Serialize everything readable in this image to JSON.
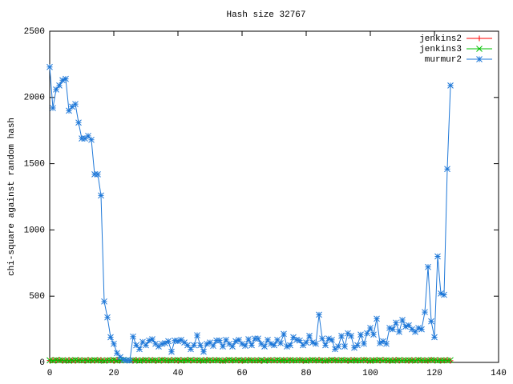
{
  "chart_data": {
    "type": "line",
    "title": "Hash size 32767",
    "y_label": "chi-square against random hash",
    "legend": "top-right",
    "x": [
      0,
      1,
      2,
      3,
      4,
      5,
      6,
      7,
      8,
      9,
      10,
      11,
      12,
      13,
      14,
      15,
      16,
      17,
      18,
      19,
      20,
      21,
      22,
      23,
      24,
      25,
      26,
      27,
      28,
      29,
      30,
      31,
      32,
      33,
      34,
      35,
      36,
      37,
      38,
      39,
      40,
      41,
      42,
      43,
      44,
      45,
      46,
      47,
      48,
      49,
      50,
      51,
      52,
      53,
      54,
      55,
      56,
      57,
      58,
      59,
      60,
      61,
      62,
      63,
      64,
      65,
      66,
      67,
      68,
      69,
      70,
      71,
      72,
      73,
      74,
      75,
      76,
      77,
      78,
      79,
      80,
      81,
      82,
      83,
      84,
      85,
      86,
      87,
      88,
      89,
      90,
      91,
      92,
      93,
      94,
      95,
      96,
      97,
      98,
      99,
      100,
      101,
      102,
      103,
      104,
      105,
      106,
      107,
      108,
      109,
      110,
      111,
      112,
      113,
      114,
      115,
      116,
      117,
      118,
      119,
      120,
      121,
      122,
      123,
      124,
      125
    ],
    "series": [
      {
        "name": "jenkins2",
        "color": "#ff0000",
        "marker": "plus",
        "values": [
          14,
          17,
          15,
          19,
          13,
          16,
          18,
          15,
          12,
          17,
          16,
          14,
          18,
          15,
          13,
          17,
          19,
          14,
          16,
          15,
          12,
          18,
          15,
          17,
          14,
          16,
          13,
          19,
          15,
          17,
          14,
          16,
          18,
          13,
          15,
          17,
          16,
          14,
          19,
          15,
          13,
          17,
          15,
          18,
          14,
          16,
          15,
          13,
          17,
          19,
          14,
          16,
          18,
          15,
          12,
          17,
          16,
          14,
          18,
          15,
          13,
          17,
          19,
          14,
          16,
          15,
          12,
          18,
          15,
          17,
          14,
          16,
          13,
          19,
          15,
          17,
          14,
          16,
          18,
          13,
          15,
          17,
          16,
          14,
          19,
          15,
          13,
          17,
          15,
          18,
          14,
          16,
          15,
          13,
          17,
          19,
          14,
          16,
          18,
          15,
          12,
          17,
          16,
          14,
          18,
          15,
          13,
          17,
          19,
          14,
          16,
          15,
          12,
          18,
          15,
          17,
          14,
          16,
          13,
          19,
          15,
          17,
          14,
          16,
          18,
          13
        ]
      },
      {
        "name": "jenkins3",
        "color": "#00c000",
        "marker": "cross",
        "values": [
          16,
          13,
          18,
          15,
          17,
          14,
          12,
          16,
          19,
          15,
          14,
          17,
          13,
          16,
          18,
          15,
          14,
          12,
          17,
          16,
          19,
          13,
          15,
          18,
          16,
          14,
          17,
          15,
          12,
          16,
          18,
          14,
          15,
          17,
          13,
          19,
          16,
          15,
          14,
          17,
          18,
          13,
          16,
          15,
          19,
          14,
          17,
          16,
          13,
          15,
          18,
          14,
          16,
          17,
          12,
          15,
          19,
          16,
          14,
          18,
          15,
          13,
          17,
          16,
          14,
          15,
          18,
          12,
          16,
          17,
          14,
          19,
          15,
          16,
          13,
          18,
          15,
          14,
          17,
          16,
          12,
          15,
          18,
          16,
          14,
          17,
          13,
          15,
          19,
          16,
          14,
          18,
          15,
          17,
          13,
          16,
          15,
          14,
          18,
          17,
          12,
          16,
          15,
          19,
          14,
          17,
          16,
          13,
          15,
          18,
          14,
          16,
          17,
          15,
          13,
          19,
          16,
          14,
          15,
          18,
          17,
          13,
          16,
          15,
          14,
          17
        ]
      },
      {
        "name": "murmur2",
        "color": "#1f78d8",
        "marker": "star",
        "values": [
          2230,
          1920,
          2060,
          2090,
          2130,
          2140,
          1900,
          1930,
          1950,
          1810,
          1690,
          1690,
          1710,
          1680,
          1420,
          1420,
          1260,
          460,
          340,
          190,
          140,
          70,
          40,
          20,
          15,
          15,
          195,
          130,
          100,
          155,
          130,
          165,
          175,
          140,
          120,
          140,
          145,
          160,
          80,
          165,
          160,
          170,
          150,
          130,
          100,
          130,
          205,
          130,
          80,
          140,
          150,
          125,
          165,
          165,
          120,
          170,
          140,
          120,
          160,
          170,
          140,
          125,
          175,
          130,
          180,
          180,
          140,
          120,
          170,
          140,
          130,
          170,
          145,
          215,
          120,
          130,
          190,
          170,
          165,
          130,
          150,
          200,
          150,
          140,
          360,
          180,
          130,
          180,
          170,
          100,
          120,
          200,
          120,
          220,
          200,
          110,
          130,
          210,
          140,
          220,
          260,
          210,
          330,
          145,
          160,
          140,
          260,
          250,
          300,
          230,
          320,
          270,
          280,
          250,
          230,
          260,
          250,
          380,
          720,
          310,
          190,
          800,
          520,
          510,
          1460,
          2090
        ]
      }
    ],
    "xlim": [
      0,
      140
    ],
    "xticks": [
      0,
      20,
      40,
      60,
      80,
      100,
      120,
      140
    ],
    "ylim": [
      0,
      2500
    ],
    "yticks": [
      0,
      500,
      1000,
      1500,
      2000,
      2500
    ]
  }
}
